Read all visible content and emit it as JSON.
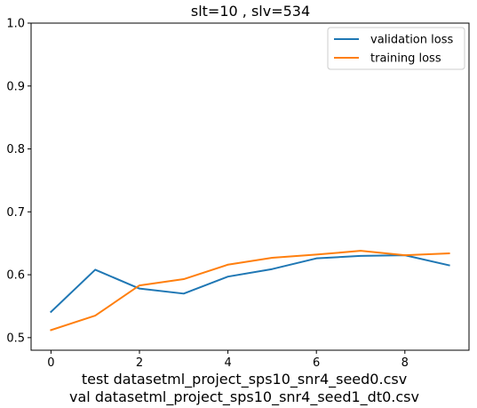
{
  "chart_data": {
    "type": "line",
    "title": "slt=10 , slv=534",
    "xlabel_lines": [
      "test datasetml_project_sps10_snr4_seed0.csv",
      "val datasetml_project_sps10_snr4_seed1_dt0.csv"
    ],
    "ylabel": "",
    "x": [
      0,
      1,
      2,
      3,
      4,
      5,
      6,
      7,
      8,
      9
    ],
    "xlim": [
      -0.45,
      9.45
    ],
    "ylim": [
      0.48,
      1.0
    ],
    "xticks": [
      0,
      2,
      4,
      6,
      8
    ],
    "yticks": [
      0.5,
      0.6,
      0.7,
      0.8,
      0.9,
      1.0
    ],
    "xtick_labels": [
      "0",
      "2",
      "4",
      "6",
      "8"
    ],
    "ytick_labels": [
      "0.5",
      "0.6",
      "0.7",
      "0.8",
      "0.9",
      "1.0"
    ],
    "grid": false,
    "legend_position": "top-right",
    "series": [
      {
        "name": "validation loss",
        "color": "#1f77b4",
        "values": [
          0.541,
          0.608,
          0.578,
          0.57,
          0.597,
          0.609,
          0.626,
          0.63,
          0.631,
          0.615
        ]
      },
      {
        "name": "training loss",
        "color": "#ff7f0e",
        "values": [
          0.512,
          0.535,
          0.583,
          0.593,
          0.616,
          0.627,
          0.632,
          0.638,
          0.631,
          0.634
        ]
      }
    ]
  }
}
